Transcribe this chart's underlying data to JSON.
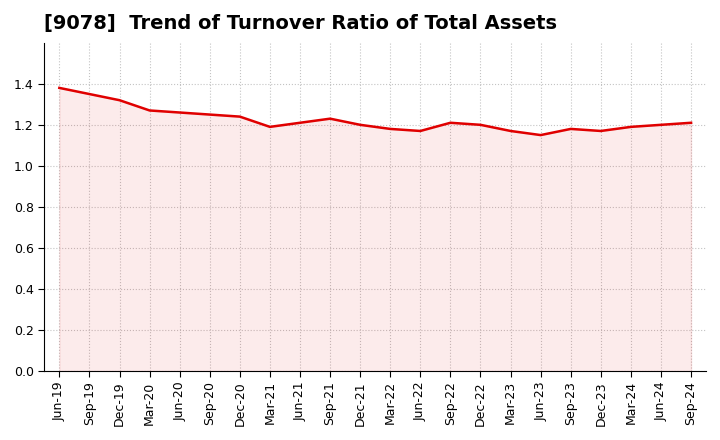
{
  "title": "[9078]  Trend of Turnover Ratio of Total Assets",
  "x_labels": [
    "Jun-19",
    "Sep-19",
    "Dec-19",
    "Mar-20",
    "Jun-20",
    "Sep-20",
    "Dec-20",
    "Mar-21",
    "Jun-21",
    "Sep-21",
    "Dec-21",
    "Mar-22",
    "Jun-22",
    "Sep-22",
    "Dec-22",
    "Mar-23",
    "Jun-23",
    "Sep-23",
    "Dec-23",
    "Mar-24",
    "Jun-24",
    "Sep-24"
  ],
  "y_values": [
    1.38,
    1.35,
    1.32,
    1.27,
    1.26,
    1.25,
    1.24,
    1.19,
    1.21,
    1.23,
    1.2,
    1.18,
    1.17,
    1.21,
    1.2,
    1.17,
    1.15,
    1.18,
    1.17,
    1.19,
    1.2,
    1.21
  ],
  "line_color": "#e00000",
  "line_width": 1.8,
  "ylim": [
    0.0,
    1.6
  ],
  "yticks": [
    0.0,
    0.2,
    0.4,
    0.6,
    0.8,
    1.0,
    1.2,
    1.4
  ],
  "background_color": "#ffffff",
  "grid_color": "#aaaaaa",
  "title_fontsize": 14,
  "tick_fontsize": 9
}
